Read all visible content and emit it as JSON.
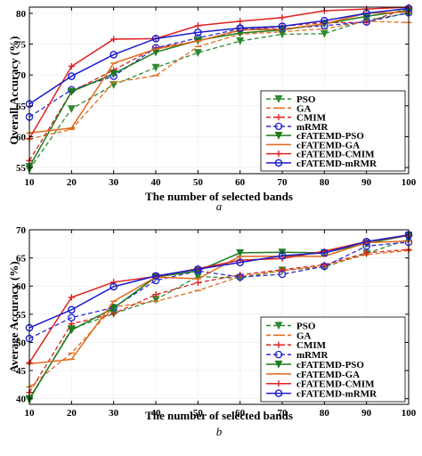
{
  "chart_data": [
    {
      "type": "line",
      "caption": "a",
      "xlabel": "The number of selected bands",
      "ylabel": "Overall Accuracy (%)",
      "x": [
        10,
        20,
        30,
        40,
        50,
        60,
        70,
        80,
        90,
        100
      ],
      "x_tick_labels": [
        "10",
        "20",
        "30",
        "40",
        "50",
        "60",
        "70",
        "80",
        "90",
        "100"
      ],
      "xlim": [
        10,
        100
      ],
      "ylim": [
        54,
        81
      ],
      "yticks": [
        55,
        60,
        65,
        70,
        75,
        80
      ],
      "grid": true,
      "legend_position": "bottom-right",
      "series": [
        {
          "name": "PSO",
          "color": "#2e8b2e",
          "dash": true,
          "marker": "triangle-down",
          "values": [
            54.7,
            64.5,
            68.4,
            71.2,
            73.6,
            75.5,
            76.6,
            76.7,
            78.9,
            80.0
          ]
        },
        {
          "name": "GA",
          "color": "#e06a1a",
          "dash": true,
          "marker": "tick",
          "values": [
            59.6,
            61.2,
            68.8,
            69.9,
            74.6,
            76.6,
            77.0,
            77.5,
            78.7,
            78.5
          ]
        },
        {
          "name": "CMIM",
          "color": "#e02020",
          "dash": true,
          "marker": "plus",
          "values": [
            56.1,
            67.3,
            70.8,
            74.4,
            75.5,
            77.2,
            77.9,
            78.5,
            78.5,
            80.9
          ]
        },
        {
          "name": "mRMR",
          "color": "#2b2bd6",
          "dash": true,
          "marker": "circle",
          "values": [
            63.2,
            67.6,
            69.8,
            74.4,
            76.0,
            77.5,
            77.5,
            78.0,
            78.6,
            80.1
          ]
        },
        {
          "name": "cFATEMD-PSO",
          "color": "#1e7a1e",
          "dash": false,
          "marker": "triangle-down",
          "values": [
            55.1,
            67.3,
            70.2,
            73.7,
            75.6,
            76.8,
            77.3,
            78.3,
            79.5,
            80.5
          ]
        },
        {
          "name": "cFATEMD-GA",
          "color": "#e06a1a",
          "dash": false,
          "marker": "tick",
          "values": [
            60.6,
            61.4,
            71.9,
            74.2,
            75.5,
            77.3,
            77.4,
            78.3,
            80.0,
            80.2
          ]
        },
        {
          "name": "cFATEMD-CMIM",
          "color": "#e02020",
          "dash": false,
          "marker": "plus",
          "values": [
            59.7,
            71.4,
            75.8,
            75.9,
            78.0,
            78.7,
            79.3,
            80.4,
            80.7,
            81.0
          ]
        },
        {
          "name": "cFATEMD-mRMR",
          "color": "#1b1bcc",
          "dash": false,
          "marker": "circle",
          "values": [
            65.3,
            69.8,
            73.3,
            75.9,
            76.9,
            77.6,
            77.9,
            78.8,
            80.0,
            80.8
          ]
        }
      ]
    },
    {
      "type": "line",
      "caption": "b",
      "xlabel": "The number of selected bands",
      "ylabel": "Average Accuracy (%)",
      "x": [
        10,
        20,
        30,
        40,
        50,
        60,
        70,
        80,
        90,
        100
      ],
      "x_tick_labels": [
        "10",
        "20",
        "30",
        "40",
        "50",
        "60",
        "70",
        "80",
        "90",
        "100"
      ],
      "xlim": [
        10,
        100
      ],
      "ylim": [
        39,
        70
      ],
      "yticks": [
        40,
        45,
        50,
        55,
        60,
        65,
        70
      ],
      "grid": true,
      "legend_position": "bottom-right",
      "series": [
        {
          "name": "PSO",
          "color": "#2e8b2e",
          "dash": true,
          "marker": "triangle-down",
          "values": [
            39.8,
            52.4,
            55.1,
            57.6,
            61.7,
            61.4,
            62.8,
            63.4,
            65.8,
            68.3
          ]
        },
        {
          "name": "GA",
          "color": "#e06a1a",
          "dash": true,
          "marker": "tick",
          "values": [
            42.1,
            48.1,
            56.3,
            57.3,
            59.2,
            61.7,
            62.7,
            63.6,
            65.6,
            66.3
          ]
        },
        {
          "name": "CMIM",
          "color": "#e02020",
          "dash": true,
          "marker": "plus",
          "values": [
            41.1,
            53.3,
            55.1,
            58.5,
            60.6,
            62.0,
            62.9,
            63.8,
            65.9,
            66.5
          ]
        },
        {
          "name": "mRMR",
          "color": "#2b2bd6",
          "dash": true,
          "marker": "circle",
          "values": [
            50.7,
            54.4,
            56.2,
            61.0,
            62.7,
            61.6,
            62.1,
            63.5,
            67.1,
            67.8
          ]
        },
        {
          "name": "cFATEMD-PSO",
          "color": "#1e7a1e",
          "dash": false,
          "marker": "triangle-down",
          "values": [
            40.0,
            52.2,
            56.1,
            61.6,
            62.7,
            65.9,
            66.0,
            65.9,
            67.6,
            69.0
          ]
        },
        {
          "name": "cFATEMD-GA",
          "color": "#e06a1a",
          "dash": false,
          "marker": "tick",
          "values": [
            46.2,
            47.0,
            57.3,
            61.6,
            61.3,
            65.3,
            65.3,
            65.3,
            67.7,
            68.0
          ]
        },
        {
          "name": "cFATEMD-CMIM",
          "color": "#e02020",
          "dash": false,
          "marker": "plus",
          "values": [
            46.4,
            58.0,
            60.7,
            61.7,
            63.1,
            64.6,
            64.9,
            66.2,
            67.9,
            69.0
          ]
        },
        {
          "name": "cFATEMD-mRMR",
          "color": "#1b1bcc",
          "dash": false,
          "marker": "circle",
          "values": [
            52.6,
            55.8,
            59.9,
            61.8,
            63.0,
            64.2,
            65.4,
            65.9,
            67.9,
            69.1
          ]
        }
      ]
    }
  ]
}
